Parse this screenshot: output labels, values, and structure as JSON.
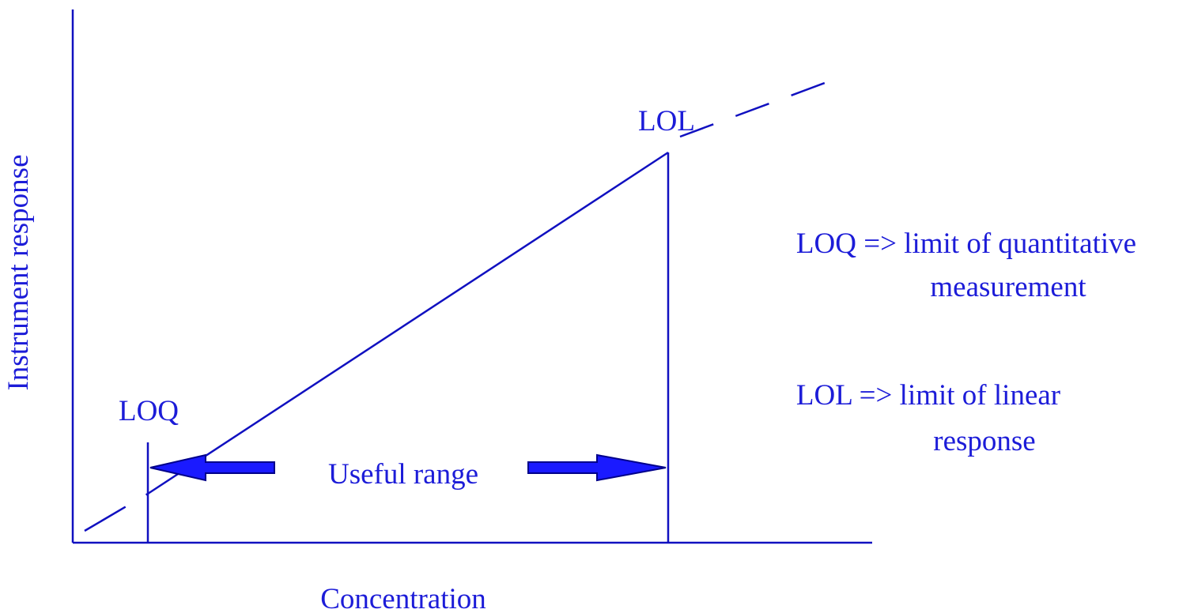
{
  "diagram": {
    "y_axis_label": "Instrument response",
    "x_axis_label": "Concentration",
    "loq_marker": "LOQ",
    "lol_marker": "LOL",
    "range_label": "Useful range",
    "notes": [
      {
        "lines": [
          "LOQ => limit of quantitative",
          "measurement"
        ]
      },
      {
        "lines": [
          "LOL => limit of linear",
          "response"
        ]
      }
    ]
  }
}
